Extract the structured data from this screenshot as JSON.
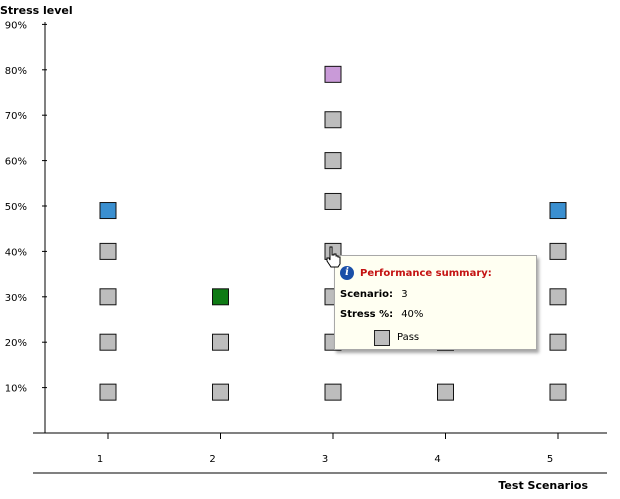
{
  "chart_data": {
    "type": "scatter",
    "ylabel": "Stress level",
    "xlabel": "Test Scenarios",
    "x_ticks": [
      "1",
      "2",
      "3",
      "4",
      "5"
    ],
    "y_ticks": [
      "10%",
      "20%",
      "30%",
      "40%",
      "50%",
      "60%",
      "70%",
      "80%",
      "90%"
    ],
    "ylim": [
      0,
      90
    ],
    "xlim": [
      0.5,
      5.5
    ],
    "grid": false,
    "colors": {
      "pass": "#bdbdbd",
      "blue": "#3a8fd0",
      "green": "#0e7a14",
      "purple": "#c99ad8"
    },
    "points": [
      {
        "x": 1,
        "y": 9,
        "status": "pass"
      },
      {
        "x": 1,
        "y": 20,
        "status": "pass"
      },
      {
        "x": 1,
        "y": 30,
        "status": "pass"
      },
      {
        "x": 1,
        "y": 40,
        "status": "pass"
      },
      {
        "x": 1,
        "y": 49,
        "status": "blue"
      },
      {
        "x": 2,
        "y": 9,
        "status": "pass"
      },
      {
        "x": 2,
        "y": 20,
        "status": "pass"
      },
      {
        "x": 2,
        "y": 30,
        "status": "green"
      },
      {
        "x": 3,
        "y": 9,
        "status": "pass"
      },
      {
        "x": 3,
        "y": 20,
        "status": "pass"
      },
      {
        "x": 3,
        "y": 30,
        "status": "pass"
      },
      {
        "x": 3,
        "y": 40,
        "status": "pass"
      },
      {
        "x": 3,
        "y": 51,
        "status": "pass"
      },
      {
        "x": 3,
        "y": 60,
        "status": "pass"
      },
      {
        "x": 3,
        "y": 69,
        "status": "pass"
      },
      {
        "x": 3,
        "y": 79,
        "status": "purple"
      },
      {
        "x": 4,
        "y": 9,
        "status": "pass"
      },
      {
        "x": 4,
        "y": 20,
        "status": "pass"
      },
      {
        "x": 5,
        "y": 9,
        "status": "pass"
      },
      {
        "x": 5,
        "y": 20,
        "status": "pass"
      },
      {
        "x": 5,
        "y": 30,
        "status": "pass"
      },
      {
        "x": 5,
        "y": 40,
        "status": "pass"
      },
      {
        "x": 5,
        "y": 49,
        "status": "blue"
      }
    ]
  },
  "tooltip": {
    "title": "Performance summary:",
    "scenario_key": "Scenario:",
    "scenario_value": "3",
    "stress_key": "Stress %:",
    "stress_value": "40%",
    "legend_label": "Pass",
    "icon": "info-icon"
  }
}
